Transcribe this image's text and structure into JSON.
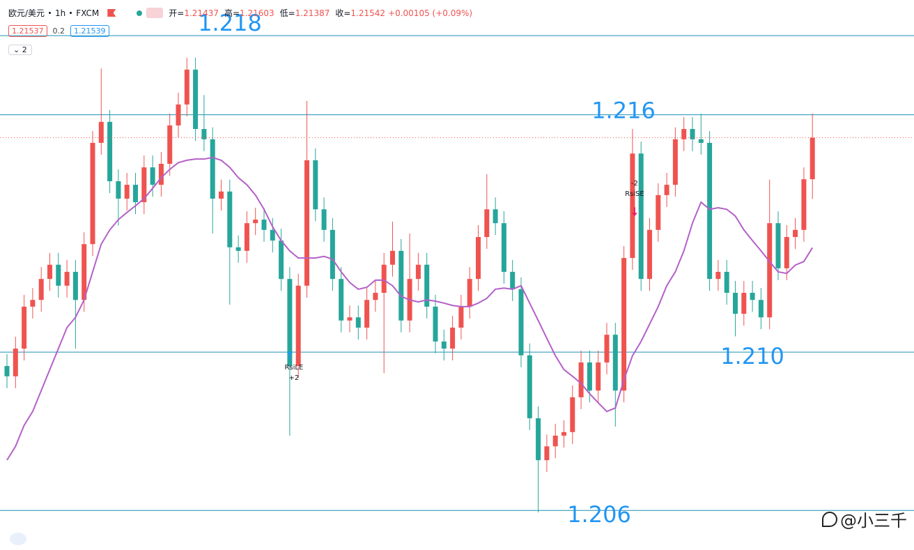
{
  "header": {
    "symbol": "欧元/美元",
    "interval": "1h",
    "exchange": "FXCM",
    "open_label": "开=",
    "high_label": "高=",
    "low_label": "低=",
    "close_label": "收=",
    "change": "+0.00105 (+0.09%)",
    "bid": 1.21537,
    "spread": 0.2,
    "ask": 1.21539,
    "indicator_count": 2
  },
  "chart_data": {
    "type": "candlestick",
    "up_color": "#ef5350",
    "down_color": "#26a69a",
    "ylim": [
      1.205,
      1.2189
    ],
    "open": [
      1.20965,
      1.20939,
      1.21009,
      1.21115,
      1.21132,
      1.21185,
      1.21221,
      1.21168,
      1.21203,
      1.21132,
      1.21273,
      1.21529,
      1.21582,
      1.21432,
      1.21388,
      1.21423,
      1.21379,
      1.21467,
      1.21423,
      1.21476,
      1.21573,
      1.21626,
      1.21714,
      1.21564,
      1.21538,
      1.21388,
      1.21406,
      1.21265,
      1.21256,
      1.21326,
      1.21335,
      1.21309,
      1.21282,
      1.21185,
      1.20965,
      1.21168,
      1.21485,
      1.21361,
      1.21309,
      1.21185,
      1.2108,
      1.21088,
      1.21062,
      1.21132,
      1.2115,
      1.21221,
      1.21256,
      1.2108,
      1.21185,
      1.21221,
      1.21115,
      1.21027,
      1.21009,
      1.21062,
      1.21115,
      1.21185,
      1.21291,
      1.21361,
      1.21326,
      1.21203,
      1.21159,
      1.20992,
      1.20833,
      1.20727,
      1.20762,
      1.20789,
      1.20798,
      1.20886,
      1.20974,
      1.20903,
      1.20974,
      1.21044,
      1.20903,
      1.21238,
      1.21502,
      1.21185,
      1.21309,
      1.21397,
      1.21423,
      1.21538,
      1.21564,
      1.21538,
      1.21529,
      1.21185,
      1.21203,
      1.2115,
      1.21097,
      1.2115,
      1.21132,
      1.21088,
      1.21326,
      1.21212,
      1.21291,
      1.21309,
      1.21437
    ],
    "high": [
      1.20995,
      1.21039,
      1.21145,
      1.21162,
      1.21215,
      1.21251,
      1.21251,
      1.21233,
      1.21233,
      1.21303,
      1.21559,
      1.21717,
      1.21612,
      1.21462,
      1.21453,
      1.21453,
      1.21497,
      1.21497,
      1.21506,
      1.21603,
      1.21656,
      1.21744,
      1.21744,
      1.2165,
      1.21568,
      1.21436,
      1.21436,
      1.21295,
      1.21356,
      1.21365,
      1.21365,
      1.21339,
      1.21312,
      1.21215,
      1.21198,
      1.21635,
      1.21515,
      1.21391,
      1.21339,
      1.21215,
      1.21118,
      1.21118,
      1.21162,
      1.2118,
      1.21251,
      1.2133,
      1.21286,
      1.213,
      1.21251,
      1.21251,
      1.21145,
      1.21057,
      1.21092,
      1.21145,
      1.21215,
      1.21321,
      1.2145,
      1.21391,
      1.21356,
      1.21233,
      1.21189,
      1.21022,
      1.20863,
      1.20792,
      1.20819,
      1.20828,
      1.20916,
      1.21004,
      1.21004,
      1.21004,
      1.21074,
      1.21074,
      1.21268,
      1.21564,
      1.21532,
      1.21339,
      1.21427,
      1.21453,
      1.21568,
      1.21594,
      1.21594,
      1.21603,
      1.21559,
      1.21233,
      1.21233,
      1.2118,
      1.2118,
      1.2118,
      1.21162,
      1.21436,
      1.21356,
      1.21321,
      1.21339,
      1.21467,
      1.21603
    ],
    "low": [
      1.20909,
      1.20909,
      1.20979,
      1.21085,
      1.21102,
      1.21155,
      1.21138,
      1.21138,
      1.21009,
      1.21102,
      1.21243,
      1.21499,
      1.21402,
      1.2132,
      1.21358,
      1.21349,
      1.21349,
      1.21393,
      1.21393,
      1.21446,
      1.21543,
      1.21596,
      1.21534,
      1.21508,
      1.213,
      1.21358,
      1.2112,
      1.21226,
      1.21226,
      1.21296,
      1.21279,
      1.21252,
      1.21155,
      1.20789,
      1.20935,
      1.21138,
      1.21331,
      1.21279,
      1.21155,
      1.2105,
      1.2105,
      1.21032,
      1.21032,
      1.21102,
      1.20947,
      1.21191,
      1.2105,
      1.2105,
      1.21155,
      1.21085,
      1.20997,
      1.20979,
      1.20979,
      1.21032,
      1.21085,
      1.21155,
      1.21261,
      1.21296,
      1.21173,
      1.21129,
      1.20962,
      1.20803,
      1.20595,
      1.20697,
      1.20732,
      1.20759,
      1.20768,
      1.20856,
      1.20873,
      1.20873,
      1.20944,
      1.20812,
      1.20873,
      1.21208,
      1.21155,
      1.21155,
      1.21279,
      1.21367,
      1.21393,
      1.21508,
      1.21508,
      1.21499,
      1.21155,
      1.21155,
      1.2112,
      1.2104,
      1.21067,
      1.21102,
      1.21058,
      1.21058,
      1.21182,
      1.21182,
      1.21261,
      1.21279,
      1.21387
    ],
    "close": [
      1.20939,
      1.21009,
      1.21115,
      1.21132,
      1.21185,
      1.21221,
      1.21168,
      1.21203,
      1.21132,
      1.21273,
      1.21529,
      1.21582,
      1.21432,
      1.21388,
      1.21423,
      1.21379,
      1.21467,
      1.21423,
      1.21476,
      1.21573,
      1.21626,
      1.21714,
      1.21564,
      1.21538,
      1.21388,
      1.21406,
      1.21265,
      1.21256,
      1.21326,
      1.21335,
      1.21309,
      1.21282,
      1.21185,
      1.20965,
      1.21168,
      1.21485,
      1.21361,
      1.21309,
      1.21185,
      1.2108,
      1.21088,
      1.21062,
      1.21132,
      1.2115,
      1.21221,
      1.21256,
      1.2108,
      1.21185,
      1.21221,
      1.21115,
      1.21027,
      1.21009,
      1.21062,
      1.21115,
      1.21185,
      1.21291,
      1.21361,
      1.21326,
      1.21203,
      1.21159,
      1.20992,
      1.20833,
      1.20727,
      1.20762,
      1.20789,
      1.20798,
      1.20886,
      1.20974,
      1.20903,
      1.20974,
      1.21044,
      1.20903,
      1.21238,
      1.21502,
      1.21185,
      1.21309,
      1.21397,
      1.21423,
      1.21538,
      1.21564,
      1.21538,
      1.21529,
      1.21185,
      1.21203,
      1.2115,
      1.21097,
      1.2115,
      1.21132,
      1.21088,
      1.21326,
      1.21212,
      1.21291,
      1.21309,
      1.21437,
      1.21542
    ],
    "moving_average": {
      "color": "#b460c8",
      "values": [
        1.20727,
        1.20762,
        1.20815,
        1.2085,
        1.20903,
        1.20956,
        1.21009,
        1.21062,
        1.21088,
        1.21132,
        1.21203,
        1.21273,
        1.21309,
        1.21335,
        1.21353,
        1.2137,
        1.21388,
        1.21414,
        1.21441,
        1.21462,
        1.21479,
        1.21485,
        1.21488,
        1.21488,
        1.21492,
        1.21485,
        1.21467,
        1.21441,
        1.21423,
        1.21397,
        1.21361,
        1.21317,
        1.21282,
        1.21256,
        1.21238,
        1.21238,
        1.21238,
        1.21242,
        1.21235,
        1.21203,
        1.21176,
        1.21159,
        1.21164,
        1.21182,
        1.21182,
        1.21168,
        1.21141,
        1.21132,
        1.21127,
        1.21132,
        1.21129,
        1.21124,
        1.21118,
        1.21115,
        1.21115,
        1.21124,
        1.21136,
        1.21159,
        1.21162,
        1.21159,
        1.21168,
        1.21124,
        1.2108,
        1.21035,
        1.20991,
        1.20956,
        1.20939,
        1.20921,
        1.20895,
        1.20872,
        1.2085,
        1.20859,
        1.2093,
        1.20991,
        1.21027,
        1.21071,
        1.21115,
        1.21168,
        1.21203,
        1.21256,
        1.21326,
        1.21379,
        1.21361,
        1.21365,
        1.21361,
        1.21344,
        1.21309,
        1.21282,
        1.21256,
        1.21229,
        1.21203,
        1.21199,
        1.2122,
        1.21229,
        1.21264
      ]
    },
    "levels": [
      1.218,
      1.216,
      {
        "value": 1.21,
        "label": "1.210"
      },
      1.206
    ],
    "level_color": "#1e8fb4",
    "last_price_line": true,
    "signals": [
      {
        "label": "RsiLE",
        "qty": "+2",
        "index": 33,
        "direction": "long",
        "color": "#2196f3"
      },
      {
        "label": "RsiSE",
        "qty": "-2",
        "index": 73,
        "direction": "short",
        "color": "#e91e63"
      }
    ]
  },
  "watermark": "@小三千"
}
